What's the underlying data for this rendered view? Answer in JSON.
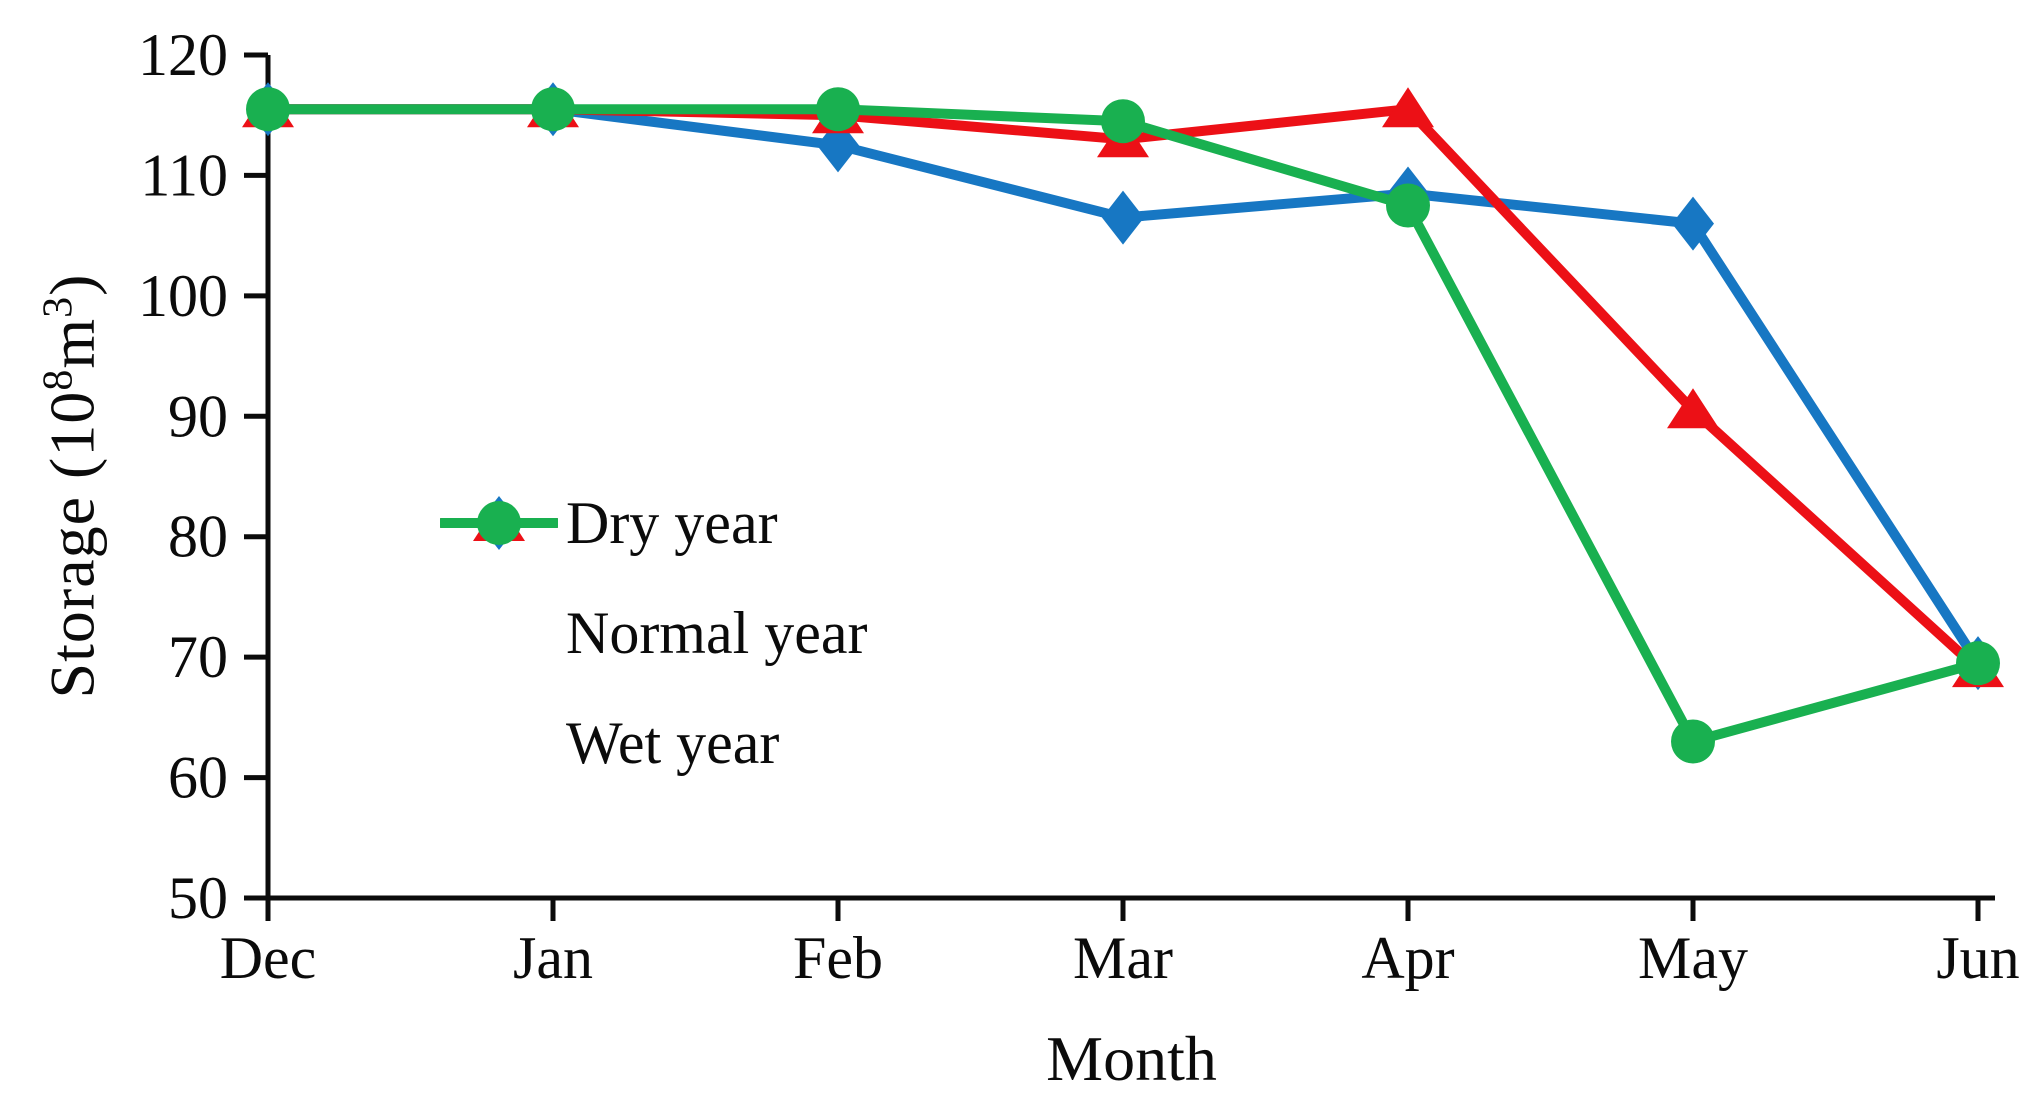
{
  "chart_data": {
    "type": "line",
    "title": "",
    "xlabel": "Month",
    "ylabel": "Storage (10⁸m³)",
    "ylabel_parts": {
      "prefix": "Storage (10",
      "exp1": "8",
      "unit": "m",
      "exp2": "3",
      "suffix": ")"
    },
    "categories": [
      "Dec",
      "Jan",
      "Feb",
      "Mar",
      "Apr",
      "May",
      "Jun"
    ],
    "ylim": [
      50,
      120
    ],
    "yticks": [
      50,
      60,
      70,
      80,
      90,
      100,
      110,
      120
    ],
    "grid": false,
    "legend_position": "inside-center-left",
    "axis_color": "#0b0b0b",
    "series": [
      {
        "name": "Dry year",
        "color": "#1777c3",
        "marker": "diamond",
        "values": [
          115.5,
          115.5,
          112.5,
          106.5,
          108.5,
          106,
          69.5
        ]
      },
      {
        "name": "Normal year",
        "color": "#ec1016",
        "marker": "triangle",
        "values": [
          115.5,
          115.5,
          115,
          113,
          115.5,
          90.5,
          69
        ]
      },
      {
        "name": "Wet year",
        "color": "#19b050",
        "marker": "circle",
        "values": [
          115.5,
          115.5,
          115.5,
          114.5,
          107.5,
          63,
          69.5
        ]
      }
    ]
  }
}
